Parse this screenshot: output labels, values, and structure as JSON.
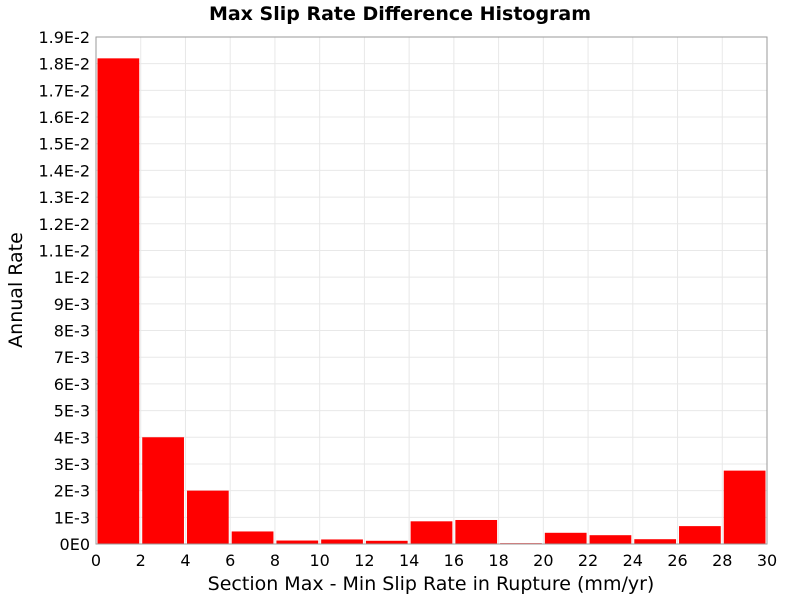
{
  "chart_data": {
    "type": "bar",
    "title": "Max Slip Rate Difference Histogram",
    "xlabel": "Section Max - Min Slip Rate in Rupture (mm/yr)",
    "ylabel": "Annual Rate",
    "xlim": [
      0,
      30
    ],
    "ylim": [
      0,
      0.019
    ],
    "grid": true,
    "bar_color": "#ff0000",
    "x_ticks": [
      0,
      2,
      4,
      6,
      8,
      10,
      12,
      14,
      16,
      18,
      20,
      22,
      24,
      26,
      28,
      30
    ],
    "x_tick_labels": [
      "0",
      "2",
      "4",
      "6",
      "8",
      "10",
      "12",
      "14",
      "16",
      "18",
      "20",
      "22",
      "24",
      "26",
      "28",
      "30"
    ],
    "y_ticks": [
      0,
      0.001,
      0.002,
      0.003,
      0.004,
      0.005,
      0.006,
      0.007,
      0.008,
      0.009,
      0.01,
      0.011,
      0.012,
      0.013,
      0.014,
      0.015,
      0.016,
      0.017,
      0.018,
      0.019
    ],
    "y_tick_labels": [
      "0E0",
      "1E-3",
      "2E-3",
      "3E-3",
      "4E-3",
      "5E-3",
      "6E-3",
      "7E-3",
      "8E-3",
      "9E-3",
      "1E-2",
      "1.1E-2",
      "1.2E-2",
      "1.3E-2",
      "1.4E-2",
      "1.5E-2",
      "1.6E-2",
      "1.7E-2",
      "1.8E-2",
      "1.9E-2"
    ],
    "bins": [
      {
        "x0": 0,
        "x1": 2,
        "value": 0.0182
      },
      {
        "x0": 2,
        "x1": 4,
        "value": 0.004
      },
      {
        "x0": 4,
        "x1": 6,
        "value": 0.002
      },
      {
        "x0": 6,
        "x1": 8,
        "value": 0.00047
      },
      {
        "x0": 8,
        "x1": 10,
        "value": 0.00013
      },
      {
        "x0": 10,
        "x1": 12,
        "value": 0.00017
      },
      {
        "x0": 12,
        "x1": 14,
        "value": 0.00012
      },
      {
        "x0": 14,
        "x1": 16,
        "value": 0.00085
      },
      {
        "x0": 16,
        "x1": 18,
        "value": 0.0009
      },
      {
        "x0": 18,
        "x1": 20,
        "value": 3e-05
      },
      {
        "x0": 20,
        "x1": 22,
        "value": 0.00042
      },
      {
        "x0": 22,
        "x1": 24,
        "value": 0.00033
      },
      {
        "x0": 24,
        "x1": 26,
        "value": 0.00018
      },
      {
        "x0": 26,
        "x1": 28,
        "value": 0.00067
      },
      {
        "x0": 28,
        "x1": 30,
        "value": 0.00275
      }
    ]
  }
}
